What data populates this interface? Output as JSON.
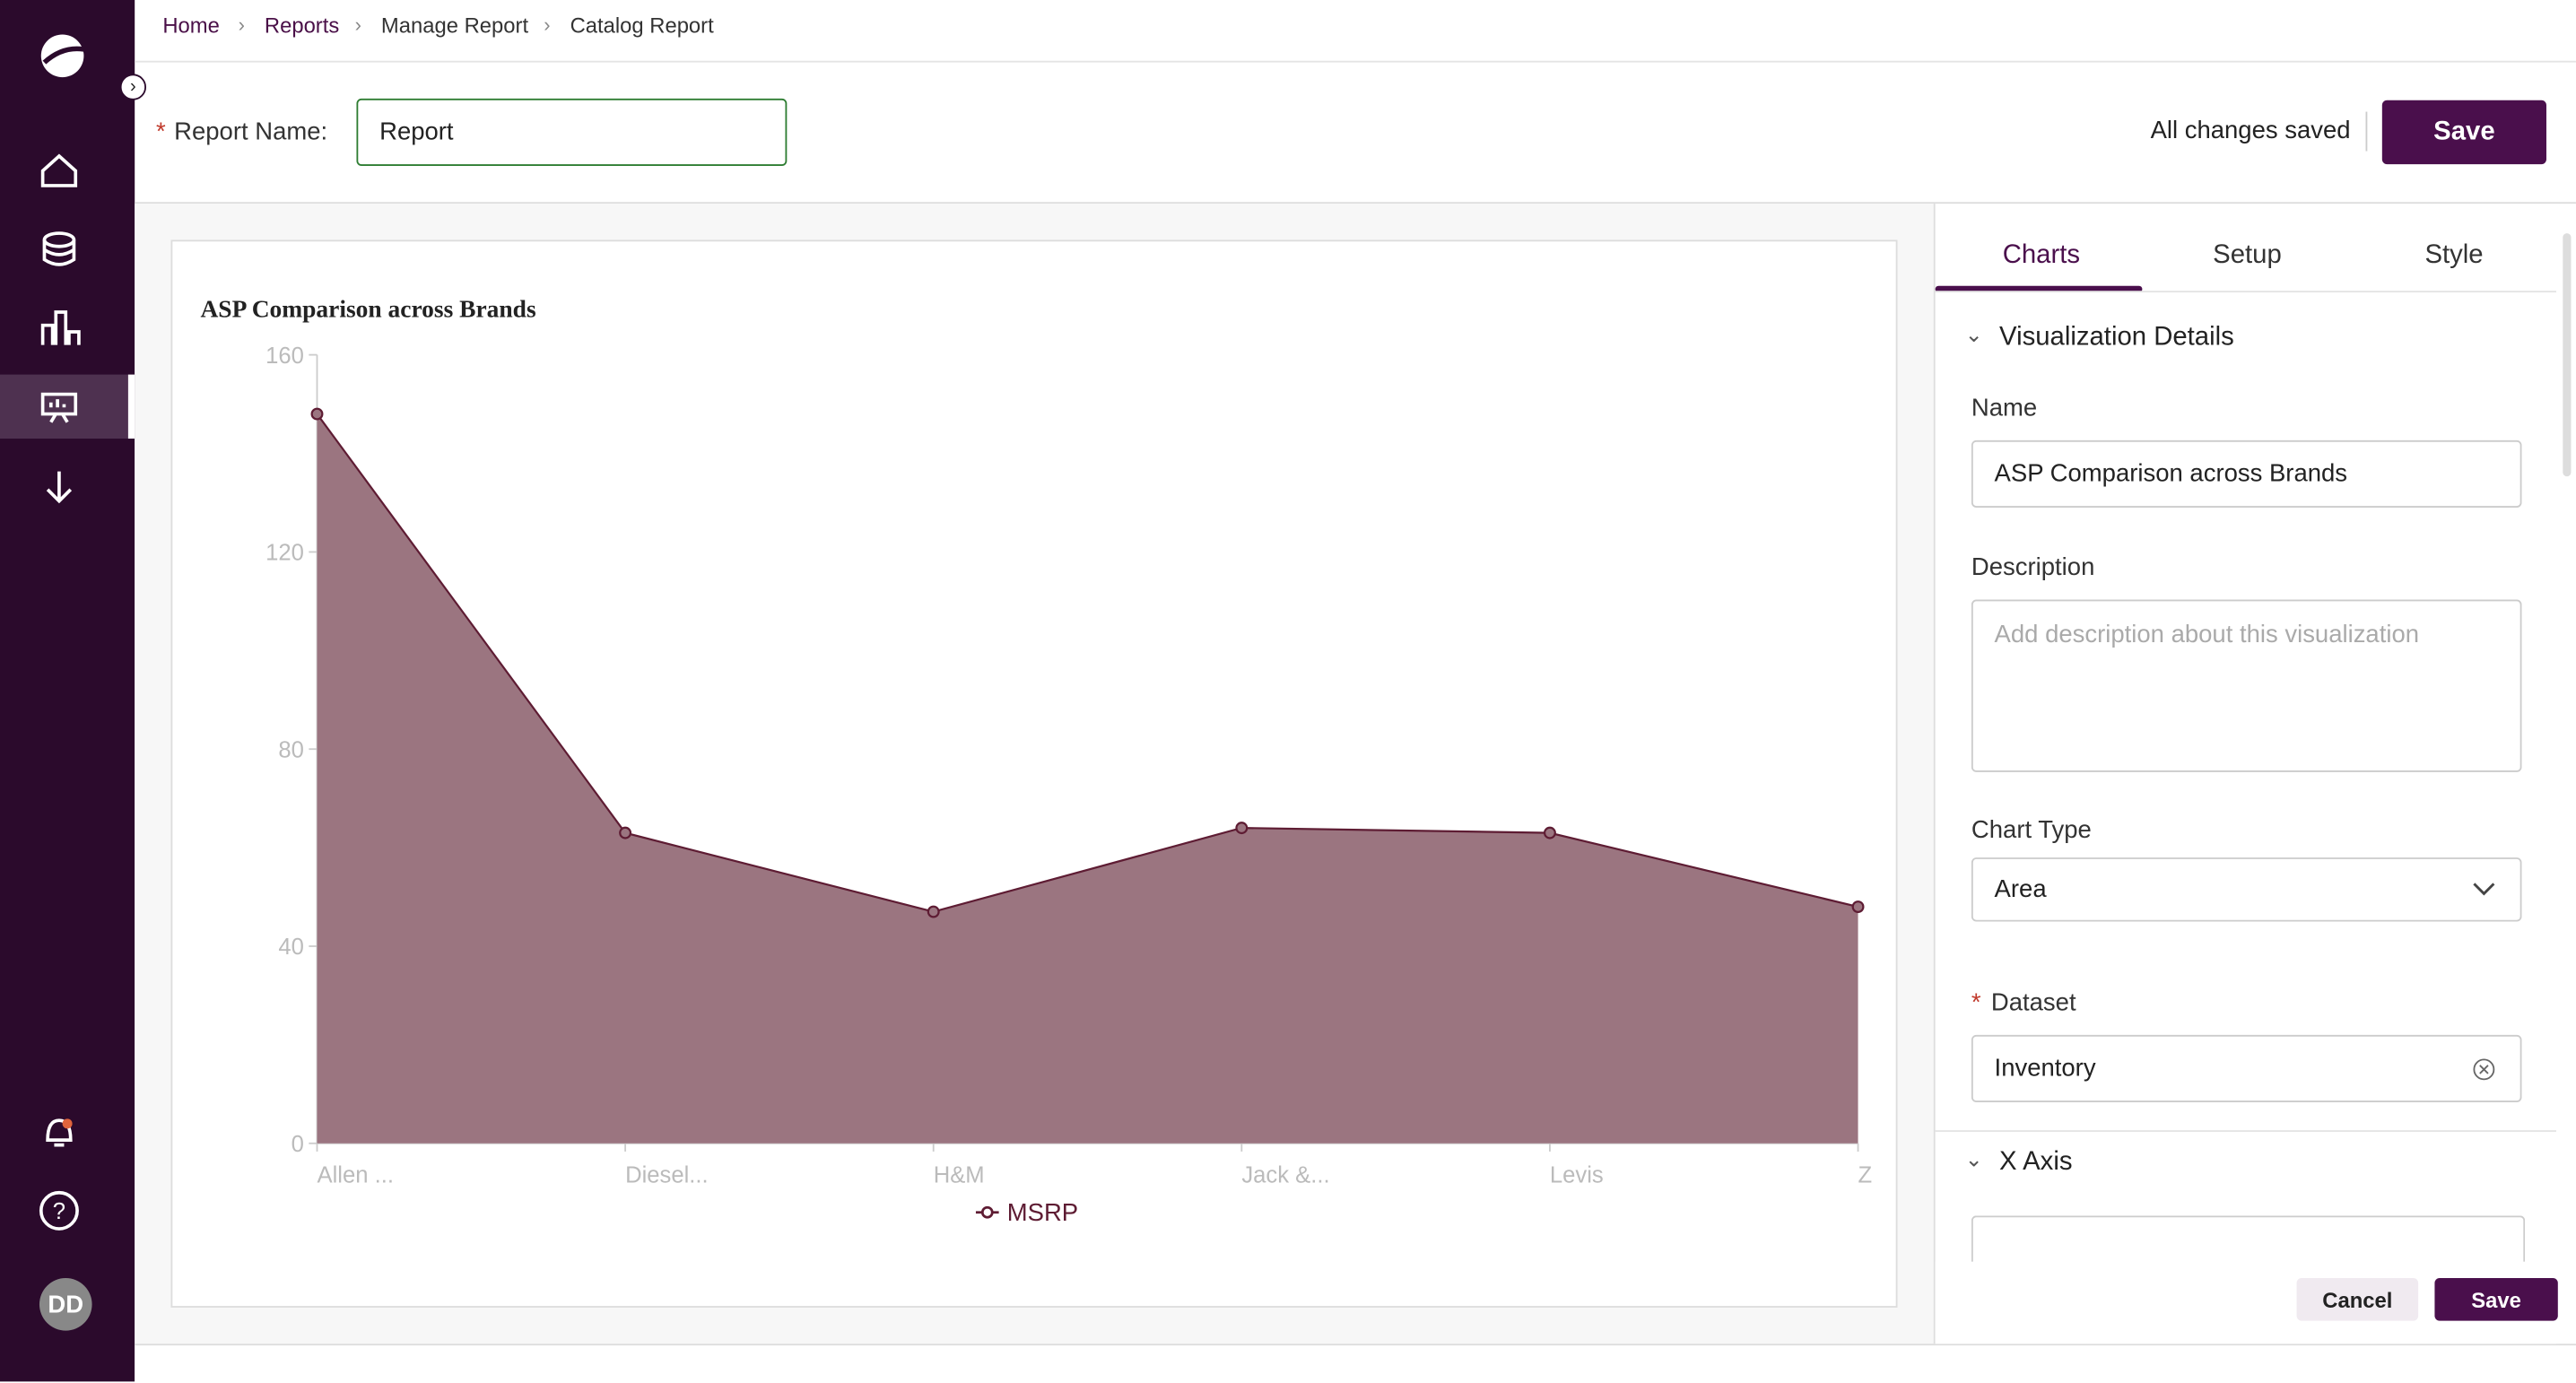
{
  "breadcrumb": [
    "Home",
    "Reports",
    "Manage Report",
    "Catalog Report"
  ],
  "report_name": {
    "label": "Report Name:",
    "value": "Report"
  },
  "status": "All changes saved",
  "save": "Save",
  "avatar": "DD",
  "tabs": [
    "Charts",
    "Setup",
    "Style"
  ],
  "panel": {
    "section": "Visualization Details",
    "name_label": "Name",
    "name_value": "ASP Comparison across Brands",
    "description_label": "Description",
    "description_placeholder": "Add description about this visualization",
    "chart_type_label": "Chart Type",
    "chart_type_value": "Area",
    "dataset_label": "Dataset",
    "dataset_value": "Inventory",
    "x_axis": "X Axis",
    "cancel": "Cancel",
    "save": "Save"
  },
  "chart_data": {
    "type": "area",
    "title": "ASP Comparison across Brands",
    "categories": [
      "Allen ...",
      "Diesel...",
      "H&M",
      "Jack &...",
      "Levis",
      "Z"
    ],
    "series": [
      {
        "name": "MSRP",
        "color": "#9b7580",
        "line_color": "#5e1c33",
        "values": [
          148,
          63,
          47,
          64,
          63,
          48
        ]
      }
    ],
    "ylim": [
      0,
      160
    ],
    "yticks": [
      0,
      40,
      80,
      120,
      160
    ]
  }
}
